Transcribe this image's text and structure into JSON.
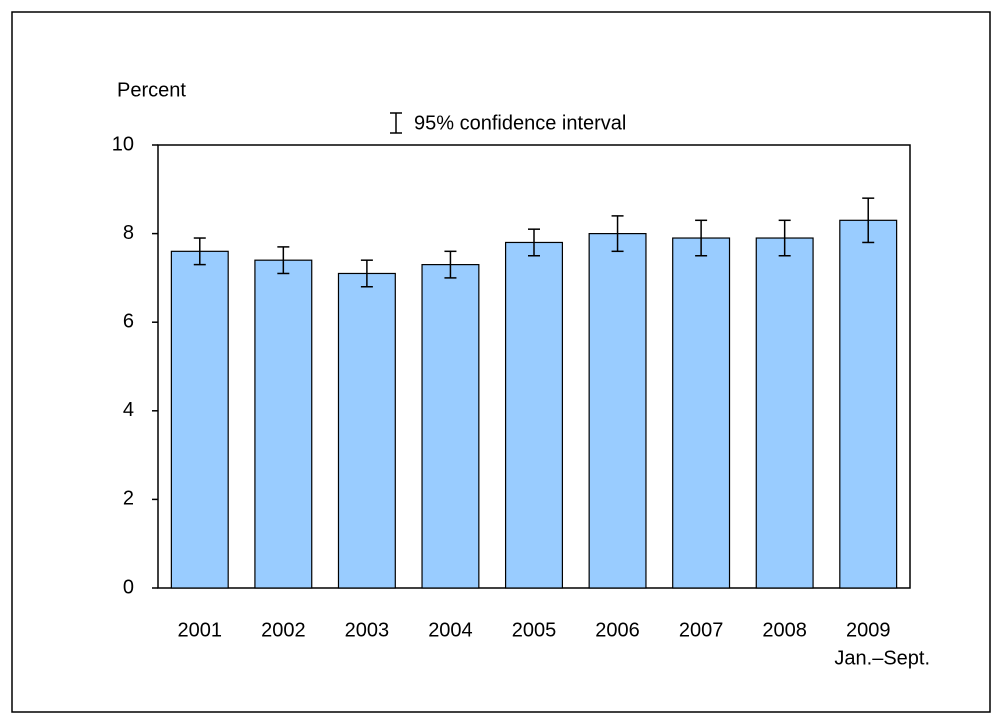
{
  "chart_data": {
    "type": "bar",
    "y_label": "Percent",
    "legend_label": "95% confidence interval",
    "categories": [
      "2001",
      "2002",
      "2003",
      "2004",
      "2005",
      "2006",
      "2007",
      "2008",
      "2009"
    ],
    "category_notes": [
      null,
      null,
      null,
      null,
      null,
      null,
      null,
      null,
      "Jan.–Sept."
    ],
    "values": [
      7.6,
      7.4,
      7.1,
      7.3,
      7.8,
      8.0,
      7.9,
      7.9,
      8.3
    ],
    "errors": [
      0.3,
      0.3,
      0.3,
      0.3,
      0.3,
      0.4,
      0.4,
      0.4,
      0.5
    ],
    "color": "#99ccff",
    "ylim": [
      0,
      10
    ],
    "yticks": [
      0,
      2,
      4,
      6,
      8,
      10
    ],
    "grid": false
  }
}
